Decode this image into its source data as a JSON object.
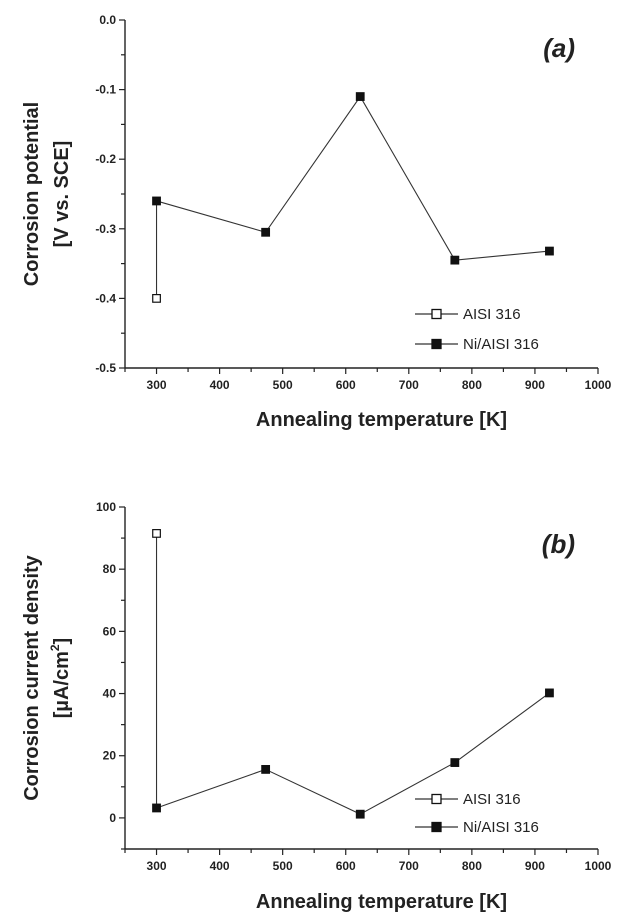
{
  "chart_data": [
    {
      "type": "line",
      "panel_label": "(a)",
      "xlabel": "Annealing temperature [K]",
      "ylabel_lines": [
        "Corrosion potential",
        "[V vs. SCE]"
      ],
      "xlim": [
        250,
        1000
      ],
      "ylim": [
        -0.5,
        0.0
      ],
      "xticks": [
        300,
        400,
        500,
        600,
        700,
        800,
        900,
        1000
      ],
      "yticks": [
        0.0,
        -0.1,
        -0.2,
        -0.3,
        -0.4,
        -0.5
      ],
      "ytick_labels": [
        "0.0",
        "-0.1",
        "-0.2",
        "-0.3",
        "-0.4",
        "-0.5"
      ],
      "legend_position": "bottom-right",
      "series": [
        {
          "name": "AISI 316",
          "marker": "open-square",
          "x": [
            300
          ],
          "y": [
            -0.4
          ]
        },
        {
          "name": "Ni/AISI 316",
          "marker": "filled-square",
          "x": [
            300,
            473,
            623,
            773,
            923
          ],
          "y": [
            -0.26,
            -0.305,
            -0.11,
            -0.345,
            -0.332
          ]
        }
      ],
      "connectors": [
        {
          "x": [
            300,
            300
          ],
          "y": [
            -0.4,
            -0.26
          ]
        }
      ]
    },
    {
      "type": "line",
      "panel_label": "(b)",
      "xlabel": "Annealing temperature [K]",
      "ylabel_lines": [
        "Corrosion current density",
        "[µA/cm",
        "2",
        "]"
      ],
      "xlim": [
        250,
        1000
      ],
      "ylim": [
        -10,
        100
      ],
      "xticks": [
        300,
        400,
        500,
        600,
        700,
        800,
        900,
        1000
      ],
      "yticks": [
        0,
        20,
        40,
        60,
        80,
        100
      ],
      "ytick_labels": [
        "0",
        "20",
        "40",
        "60",
        "80",
        "100"
      ],
      "legend_position": "bottom-right",
      "series": [
        {
          "name": "AISI 316",
          "marker": "open-square",
          "x": [
            300
          ],
          "y": [
            91.5
          ]
        },
        {
          "name": "Ni/AISI 316",
          "marker": "filled-square",
          "x": [
            300,
            473,
            623,
            773,
            923
          ],
          "y": [
            3.2,
            15.6,
            1.2,
            17.8,
            40.2
          ]
        }
      ],
      "connectors": [
        {
          "x": [
            300,
            300
          ],
          "y": [
            91.5,
            3.2
          ]
        }
      ]
    }
  ]
}
